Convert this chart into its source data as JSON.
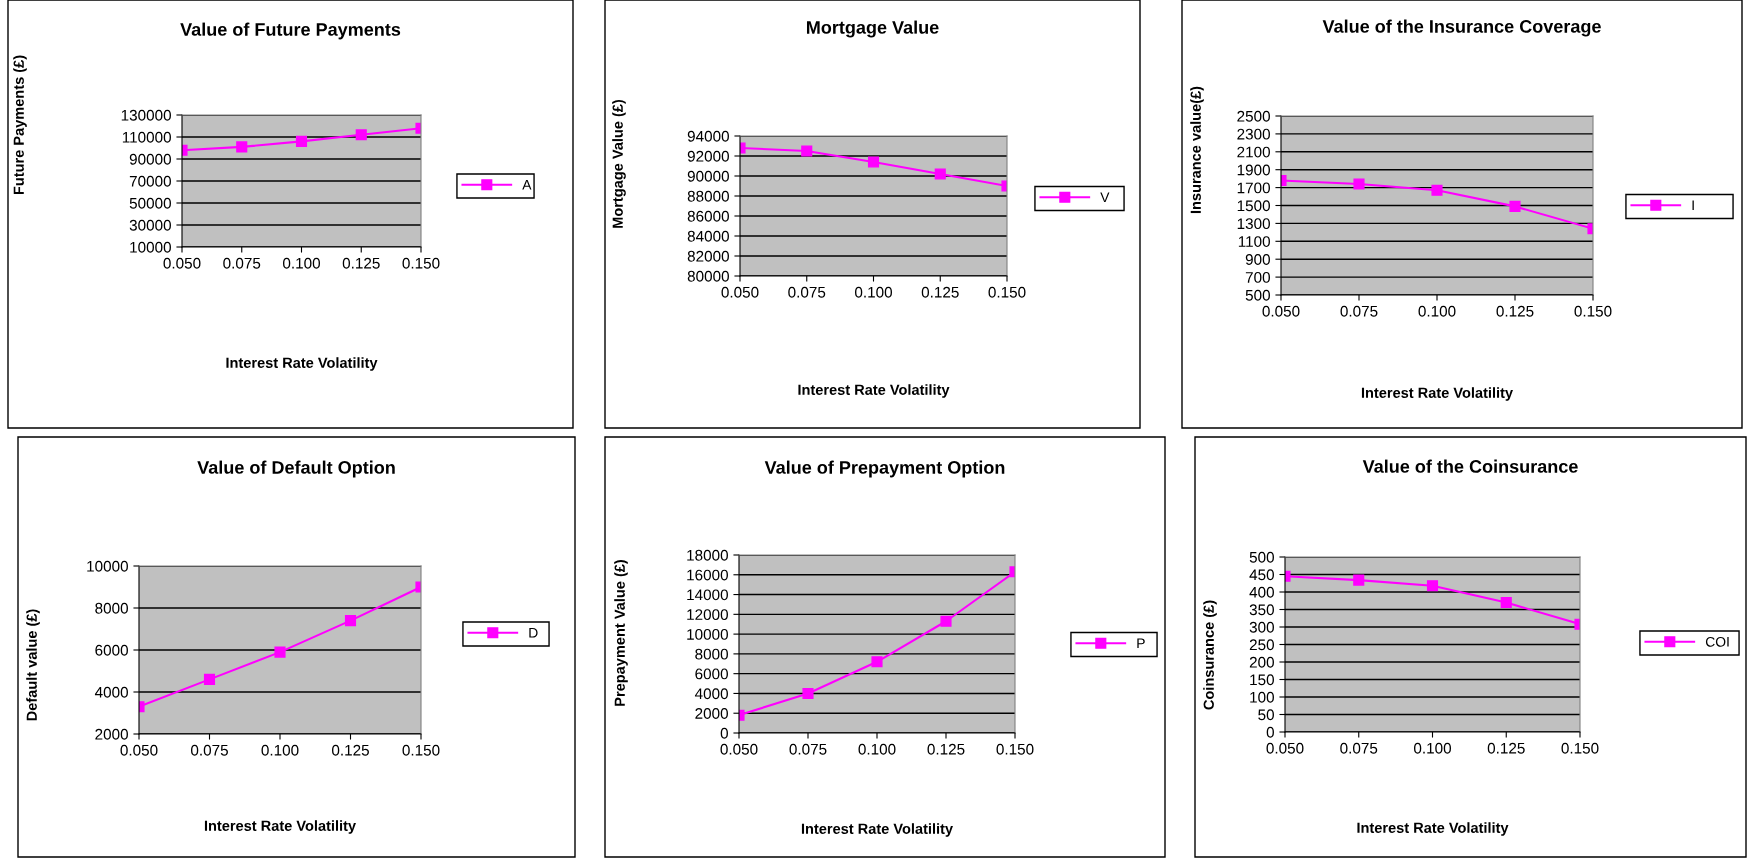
{
  "chart_data": [
    {
      "type": "line",
      "title": "Value of Future Payments",
      "xlabel": "Interest Rate Volatility",
      "ylabel": "Future Payments (£)",
      "categories": [
        "0.050",
        "0.075",
        "0.100",
        "0.125",
        "0.150"
      ],
      "series": [
        {
          "name": "A",
          "color": "#ff00ff",
          "values": [
            98000,
            101000,
            106000,
            112000,
            118000
          ]
        }
      ],
      "ylim": [
        10000,
        130000
      ],
      "yticks": [
        10000,
        30000,
        50000,
        70000,
        90000,
        110000,
        130000
      ],
      "grid": "y",
      "legend": "right",
      "marker": "square"
    },
    {
      "type": "line",
      "title": "Mortgage Value",
      "xlabel": "Interest Rate Volatility",
      "ylabel": "Mortgage Value (£)",
      "categories": [
        "0.050",
        "0.075",
        "0.100",
        "0.125",
        "0.150"
      ],
      "series": [
        {
          "name": "V",
          "color": "#ff00ff",
          "values": [
            92800,
            92500,
            91400,
            90200,
            89000
          ]
        }
      ],
      "ylim": [
        80000,
        94000
      ],
      "yticks": [
        80000,
        82000,
        84000,
        86000,
        88000,
        90000,
        92000,
        94000
      ],
      "grid": "y",
      "legend": "right",
      "marker": "square"
    },
    {
      "type": "line",
      "title": "Value of the Insurance Coverage",
      "xlabel": "Interest Rate Volatility",
      "ylabel": "Insurance value(£)",
      "categories": [
        "0.050",
        "0.075",
        "0.100",
        "0.125",
        "0.150"
      ],
      "series": [
        {
          "name": "I",
          "color": "#ff00ff",
          "values": [
            1780,
            1740,
            1670,
            1490,
            1240
          ]
        }
      ],
      "ylim": [
        500,
        2500
      ],
      "yticks": [
        500,
        700,
        900,
        1100,
        1300,
        1500,
        1700,
        1900,
        2100,
        2300,
        2500
      ],
      "grid": "y",
      "legend": "right",
      "marker": "square"
    },
    {
      "type": "line",
      "title": "Value of Default Option",
      "xlabel": "Interest Rate Volatility",
      "ylabel": "Default value (£)",
      "categories": [
        "0.050",
        "0.075",
        "0.100",
        "0.125",
        "0.150"
      ],
      "series": [
        {
          "name": "D",
          "color": "#ff00ff",
          "values": [
            3300,
            4600,
            5900,
            7400,
            9000
          ]
        }
      ],
      "ylim": [
        2000,
        10000
      ],
      "yticks": [
        2000,
        4000,
        6000,
        8000,
        10000
      ],
      "grid": "y",
      "legend": "right",
      "marker": "square"
    },
    {
      "type": "line",
      "title": "Value of Prepayment Option",
      "xlabel": "Interest Rate Volatility",
      "ylabel": "Prepayment Value (£)",
      "categories": [
        "0.050",
        "0.075",
        "0.100",
        "0.125",
        "0.150"
      ],
      "series": [
        {
          "name": "P",
          "color": "#ff00ff",
          "values": [
            1800,
            4000,
            7200,
            11300,
            16300
          ]
        }
      ],
      "ylim": [
        0,
        18000
      ],
      "yticks": [
        0,
        2000,
        4000,
        6000,
        8000,
        10000,
        12000,
        14000,
        16000,
        18000
      ],
      "grid": "y",
      "legend": "right",
      "marker": "square"
    },
    {
      "type": "line",
      "title": "Value of the Coinsurance",
      "xlabel": "Interest Rate Volatility",
      "ylabel": "Coinsurance (£)",
      "categories": [
        "0.050",
        "0.075",
        "0.100",
        "0.125",
        "0.150"
      ],
      "series": [
        {
          "name": "COI",
          "color": "#ff00ff",
          "values": [
            445,
            434,
            418,
            370,
            308
          ]
        }
      ],
      "ylim": [
        0,
        500
      ],
      "yticks": [
        0,
        50,
        100,
        150,
        200,
        250,
        300,
        350,
        400,
        450,
        500
      ],
      "grid": "y",
      "legend": "right",
      "marker": "square"
    }
  ]
}
